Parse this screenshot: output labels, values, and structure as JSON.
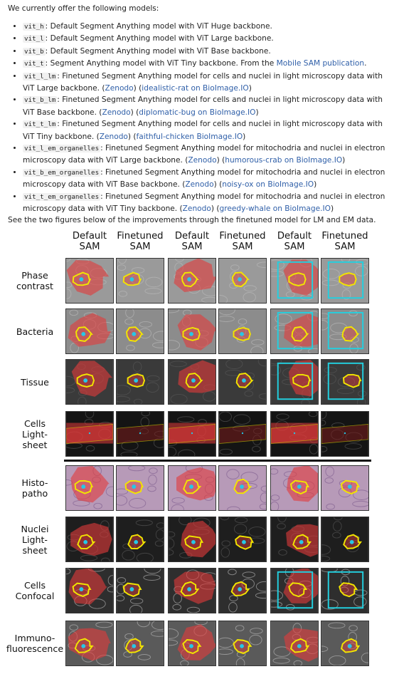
{
  "intro": "We currently offer the following models:",
  "models": [
    {
      "code": "vit_h",
      "text": ": Default Segment Anything model with ViT Huge backbone."
    },
    {
      "code": "vit_l",
      "text": ": Default Segment Anything model with ViT Large backbone."
    },
    {
      "code": "vit_b",
      "text": ": Default Segment Anything model with ViT Base backbone."
    },
    {
      "code": "vit_t",
      "text": ": Segment Anything model with ViT Tiny backbone. From the ",
      "link1": "Mobile SAM publication",
      "tail": "."
    },
    {
      "code": "vit_l_lm",
      "text": ": Finetuned Segment Anything model for cells and nuclei in light microscopy data with ViT Large backbone. (",
      "link1": "Zenodo",
      "mid": ") (",
      "link2": "idealistic-rat on BioImage.IO",
      "tail": ")"
    },
    {
      "code": "vit_b_lm",
      "text": ": Finetuned Segment Anything model for cells and nuclei in light microscopy data with ViT Base backbone. (",
      "link1": "Zenodo",
      "mid": ") (",
      "link2": "diplomatic-bug on BioImage.IO",
      "tail": ")"
    },
    {
      "code": "vit_t_lm",
      "text": ": Finetuned Segment Anything model for cells and nuclei in light microscopy data with ViT Tiny backbone. (",
      "link1": "Zenodo",
      "mid": ") (",
      "link2": "faithful-chicken BioImage.IO",
      "tail": ")"
    },
    {
      "code": "vit_l_em_organelles",
      "text": ": Finetuned Segment Anything model for mitochodria and nuclei in electron microscopy data with ViT Large backbone. (",
      "link1": "Zenodo",
      "mid": ") (",
      "link2": "humorous-crab on BioImage.IO",
      "tail": ")"
    },
    {
      "code": "vit_b_em_organelles",
      "text": ": Finetuned Segment Anything model for mitochodria and nuclei in electron microscopy data with ViT Base backbone. (",
      "link1": "Zenodo",
      "mid": ") (",
      "link2": "noisy-ox on BioImage.IO",
      "tail": ")"
    },
    {
      "code": "vit_t_em_organelles",
      "text": ": Finetuned Segment Anything model for mitochodria and nuclei in electron microscopy data with ViT Tiny backbone. (",
      "link1": "Zenodo",
      "mid": ") (",
      "link2": "greedy-whale on BioImage.IO",
      "tail": ")"
    }
  ],
  "after_text": "See the two figures below of the improvements through the finetuned model for LM and EM data.",
  "figure": {
    "columns": [
      {
        "line1": "Default",
        "line2": "SAM"
      },
      {
        "line1": "Finetuned",
        "line2": "SAM"
      },
      {
        "line1": "Default",
        "line2": "SAM"
      },
      {
        "line1": "Finetuned",
        "line2": "SAM"
      },
      {
        "line1": "Default",
        "line2": "SAM"
      },
      {
        "line1": "Finetuned",
        "line2": "SAM"
      }
    ],
    "rows": [
      {
        "lines": [
          "Phase",
          "contrast"
        ],
        "bg": "#9a9a9a",
        "style": "phase"
      },
      {
        "lines": [
          "Bacteria"
        ],
        "bg": "#8c8c8c",
        "style": "bact"
      },
      {
        "lines": [
          "Tissue"
        ],
        "bg": "#3a3a3a",
        "style": "tissue"
      },
      {
        "lines": [
          "Cells",
          "Light-",
          "sheet"
        ],
        "bg": "#141414",
        "style": "sheet"
      },
      {
        "lines": [
          "Histo-",
          "patho"
        ],
        "bg": "#b79ab8",
        "style": "histo"
      },
      {
        "lines": [
          "Nuclei",
          "Light-",
          "sheet"
        ],
        "bg": "#1e1e1e",
        "style": "nuclei"
      },
      {
        "lines": [
          "Cells",
          "Confocal"
        ],
        "bg": "#2e2e2e",
        "style": "confocal"
      },
      {
        "lines": [
          "Immuno-",
          "fluorescence"
        ],
        "bg": "#5a5a5a",
        "style": "immuno"
      }
    ],
    "colors": {
      "mask": "#e23b3b",
      "contour": "#f2e600",
      "point": "#25c8e8",
      "box": "#22d0e0"
    }
  }
}
